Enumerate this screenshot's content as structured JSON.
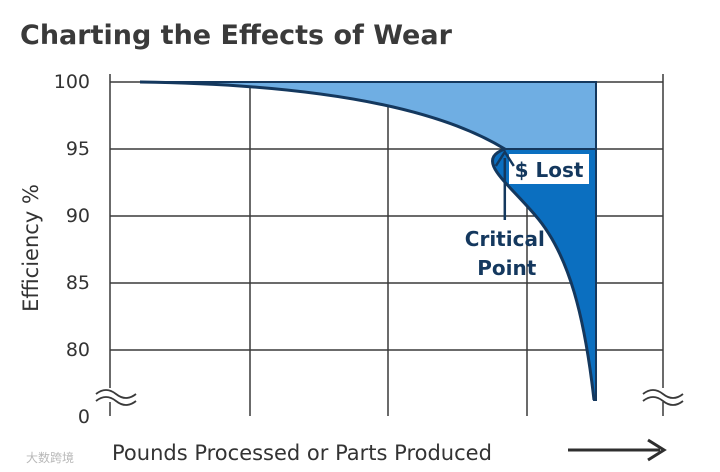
{
  "colors": {
    "light_blue": "#6FAEE3",
    "dark_blue": "#0B6FC0",
    "navy": "#14385E",
    "grid": "#3a3a3a",
    "text": "#333333"
  },
  "chart_data": {
    "type": "area",
    "title": "Charting the Effects of Wear",
    "xlabel": "Pounds Processed or Parts Produced",
    "ylabel": "Efficiency %",
    "y_ticks": [
      "100",
      "95",
      "90",
      "85",
      "80",
      "0"
    ],
    "y_axis_break": true,
    "x_axis_arrow": true,
    "grid": true,
    "series": [
      {
        "name": "",
        "x": [
          0.0,
          0.3,
          0.6,
          0.8,
          0.87,
          0.93,
          0.96,
          0.975,
          0.99
        ],
        "y": [
          100,
          99.5,
          97.5,
          95,
          92.5,
          87,
          82,
          78,
          74
        ]
      }
    ],
    "regions": [
      {
        "label": "",
        "description": "loss above curve down to critical point"
      },
      {
        "label": "$ Lost"
      }
    ],
    "annotations": [
      {
        "text_lines": [
          "Critical",
          "Point"
        ],
        "points_to": {
          "x": 0.8,
          "y": 95
        }
      }
    ]
  },
  "watermark": "大数跨境"
}
